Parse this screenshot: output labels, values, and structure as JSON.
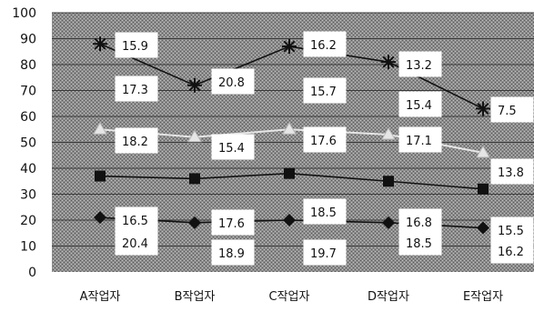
{
  "chart_data": {
    "type": "line",
    "categories": [
      "A작업자",
      "B작업자",
      "C작업자",
      "D작업자",
      "E작업자"
    ],
    "ylim": [
      0,
      100
    ],
    "yticks": [
      0,
      10,
      20,
      30,
      40,
      50,
      60,
      70,
      80,
      90,
      100
    ],
    "grid": true,
    "legend": "none",
    "series": [
      {
        "values": [
          88,
          72,
          87,
          81,
          63
        ],
        "labels": [
          "15.9",
          "20.8",
          "16.2",
          "13.2",
          "7.5"
        ],
        "marker": "asterisk",
        "color": "#111111"
      },
      {
        "values": [
          55,
          52,
          55,
          53,
          46
        ],
        "labels": [
          "18.2",
          "15.4",
          "17.6",
          "17.1",
          "13.8"
        ],
        "marker": "triangle",
        "color": "#e6e6e6"
      },
      {
        "values": [
          37,
          36,
          38,
          35,
          32
        ],
        "labels": [
          "16.5",
          "17.6",
          "18.5",
          "16.8",
          "15.5"
        ],
        "marker": "square",
        "color": "#111111"
      },
      {
        "values": [
          21,
          19,
          20,
          19,
          17
        ],
        "labels": [
          "20.4",
          "18.9",
          "19.7",
          "18.5",
          "16.2"
        ],
        "marker": "diamond",
        "color": "#111111"
      }
    ],
    "extra_labels": [
      "17.3",
      "15.7",
      "15.4"
    ]
  }
}
